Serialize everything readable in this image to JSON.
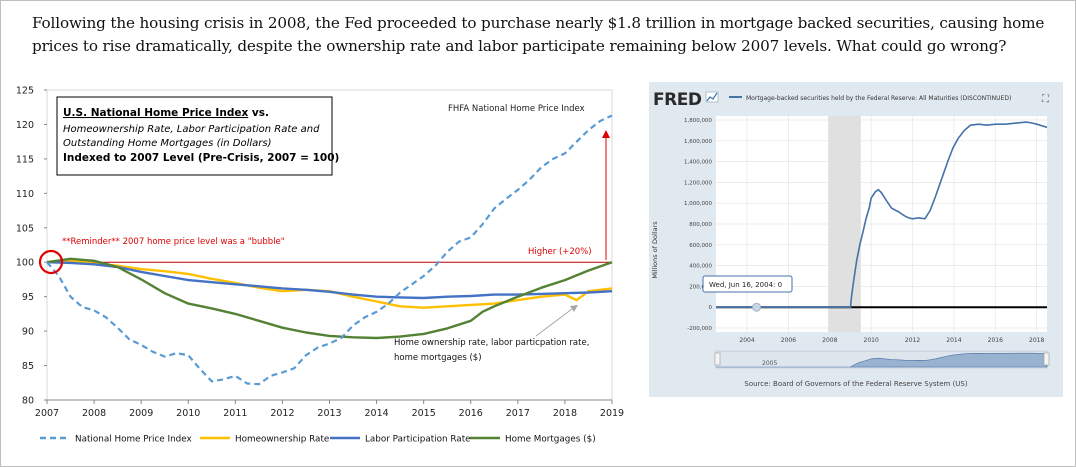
{
  "headline": "Following the housing crisis in 2008, the Fed proceeded to purchase nearly $1.8 trillion in mortgage backed securities, causing home prices to rise dramatically, despite the ownership rate and labor participate remaining below 2007 levels. What could go wrong?",
  "left_chart": {
    "titlebox": {
      "line1_underlined": "U.S. National Home Price Index",
      "line1_suffix": " vs.",
      "line2": "Homeownership Rate, Labor Participation Rate and",
      "line3": "Outstanding Home Mortgages (in Dollars)",
      "line4": "Indexed to 2007 Level (Pre-Crisis, 2007 = 100)"
    },
    "source_label": "FHFA National Home Price Index",
    "reminder": "**Reminder** 2007 home price level was a \"bubble\"",
    "higher_label": "Higher (+20%)",
    "note_line1": "Home ownership rate, labor particpation rate,",
    "note_line2": "home mortgages ($)"
  },
  "chart_data": [
    {
      "type": "line",
      "title": "",
      "xlabel": "",
      "ylabel": "",
      "xlim": [
        2007,
        2019
      ],
      "ylim": [
        80,
        125
      ],
      "x_ticks": [
        "2007",
        "2008",
        "2009",
        "2010",
        "2011",
        "2012",
        "2013",
        "2014",
        "2015",
        "2016",
        "2017",
        "2018",
        "2019"
      ],
      "y_ticks": [
        "80",
        "85",
        "90",
        "95",
        "100",
        "105",
        "110",
        "115",
        "120",
        "125"
      ],
      "grid": false,
      "reference_line": 100,
      "legend_position": "bottom",
      "colors": {
        "National Home Price Index": "#5b9bd5",
        "Homeownership Rate": "#ffc000",
        "Labor Participation Rate": "#4472c4",
        "Home Mortgages ($)": "#548235",
        "reference": "#c00000"
      },
      "series": [
        {
          "name": "National Home Price Index",
          "style": "dashed",
          "points": [
            [
              2007.0,
              100
            ],
            [
              2007.25,
              98
            ],
            [
              2007.5,
              95
            ],
            [
              2007.75,
              93.5
            ],
            [
              2008.0,
              93
            ],
            [
              2008.25,
              92
            ],
            [
              2008.5,
              90.5
            ],
            [
              2008.75,
              88.8
            ],
            [
              2009.0,
              88
            ],
            [
              2009.25,
              87
            ],
            [
              2009.5,
              86.3
            ],
            [
              2009.75,
              86.8
            ],
            [
              2010.0,
              86.5
            ],
            [
              2010.25,
              84.5
            ],
            [
              2010.5,
              82.7
            ],
            [
              2010.75,
              83
            ],
            [
              2011.0,
              83.5
            ],
            [
              2011.25,
              82.4
            ],
            [
              2011.5,
              82.3
            ],
            [
              2011.75,
              83.5
            ],
            [
              2012.0,
              84
            ],
            [
              2012.25,
              84.6
            ],
            [
              2012.5,
              86.5
            ],
            [
              2012.75,
              87.6
            ],
            [
              2013.0,
              88.2
            ],
            [
              2013.25,
              89
            ],
            [
              2013.5,
              90.8
            ],
            [
              2013.75,
              92
            ],
            [
              2014.0,
              92.8
            ],
            [
              2014.25,
              94
            ],
            [
              2014.5,
              95.6
            ],
            [
              2014.75,
              96.8
            ],
            [
              2015.0,
              98
            ],
            [
              2015.25,
              99.5
            ],
            [
              2015.5,
              101.5
            ],
            [
              2015.75,
              103
            ],
            [
              2016.0,
              103.6
            ],
            [
              2016.25,
              105.5
            ],
            [
              2016.5,
              107.8
            ],
            [
              2016.75,
              109.2
            ],
            [
              2017.0,
              110.5
            ],
            [
              2017.25,
              112
            ],
            [
              2017.5,
              113.8
            ],
            [
              2017.75,
              115
            ],
            [
              2018.0,
              115.8
            ],
            [
              2018.25,
              117.5
            ],
            [
              2018.5,
              119.2
            ],
            [
              2018.75,
              120.5
            ],
            [
              2019.0,
              121.3
            ]
          ]
        },
        {
          "name": "Homeownership Rate",
          "style": "solid",
          "points": [
            [
              2007.0,
              100
            ],
            [
              2007.5,
              100.3
            ],
            [
              2008.0,
              99.8
            ],
            [
              2008.5,
              99.5
            ],
            [
              2009.0,
              99
            ],
            [
              2009.5,
              98.7
            ],
            [
              2010.0,
              98.3
            ],
            [
              2010.5,
              97.6
            ],
            [
              2011.0,
              97
            ],
            [
              2011.5,
              96.3
            ],
            [
              2012.0,
              95.8
            ],
            [
              2012.5,
              96
            ],
            [
              2013.0,
              95.8
            ],
            [
              2013.5,
              95
            ],
            [
              2014.0,
              94.3
            ],
            [
              2014.5,
              93.6
            ],
            [
              2015.0,
              93.4
            ],
            [
              2015.5,
              93.6
            ],
            [
              2016.0,
              93.8
            ],
            [
              2016.5,
              94
            ],
            [
              2017.0,
              94.5
            ],
            [
              2017.5,
              95
            ],
            [
              2018.0,
              95.3
            ],
            [
              2018.25,
              94.5
            ],
            [
              2018.5,
              95.8
            ],
            [
              2019.0,
              96.2
            ]
          ]
        },
        {
          "name": "Labor Participation Rate",
          "style": "solid",
          "points": [
            [
              2007.0,
              100
            ],
            [
              2007.5,
              99.9
            ],
            [
              2008.0,
              99.7
            ],
            [
              2008.5,
              99.3
            ],
            [
              2009.0,
              98.6
            ],
            [
              2009.5,
              98
            ],
            [
              2010.0,
              97.4
            ],
            [
              2010.5,
              97.1
            ],
            [
              2011.0,
              96.8
            ],
            [
              2011.5,
              96.5
            ],
            [
              2012.0,
              96.2
            ],
            [
              2012.5,
              96
            ],
            [
              2013.0,
              95.7
            ],
            [
              2013.5,
              95.3
            ],
            [
              2014.0,
              95
            ],
            [
              2014.5,
              94.9
            ],
            [
              2015.0,
              94.8
            ],
            [
              2015.5,
              95
            ],
            [
              2016.0,
              95.1
            ],
            [
              2016.5,
              95.3
            ],
            [
              2017.0,
              95.3
            ],
            [
              2017.5,
              95.4
            ],
            [
              2018.0,
              95.5
            ],
            [
              2018.5,
              95.6
            ],
            [
              2019.0,
              95.8
            ]
          ]
        },
        {
          "name": "Home Mortgages ($)",
          "style": "solid",
          "points": [
            [
              2007.0,
              100
            ],
            [
              2007.5,
              100.5
            ],
            [
              2008.0,
              100.2
            ],
            [
              2008.5,
              99.3
            ],
            [
              2009.0,
              97.5
            ],
            [
              2009.5,
              95.5
            ],
            [
              2010.0,
              94
            ],
            [
              2010.5,
              93.3
            ],
            [
              2011.0,
              92.5
            ],
            [
              2011.5,
              91.5
            ],
            [
              2012.0,
              90.5
            ],
            [
              2012.5,
              89.8
            ],
            [
              2013.0,
              89.3
            ],
            [
              2013.5,
              89.1
            ],
            [
              2014.0,
              89
            ],
            [
              2014.5,
              89.2
            ],
            [
              2015.0,
              89.6
            ],
            [
              2015.5,
              90.4
            ],
            [
              2016.0,
              91.5
            ],
            [
              2016.25,
              92.8
            ],
            [
              2016.5,
              93.6
            ],
            [
              2017.0,
              95
            ],
            [
              2017.5,
              96.3
            ],
            [
              2018.0,
              97.4
            ],
            [
              2018.5,
              98.8
            ],
            [
              2019.0,
              100
            ]
          ]
        }
      ]
    },
    {
      "type": "line",
      "title": "Mortgage-backed securities held by the Federal Reserve: All Maturities (DISCONTINUED)",
      "xlabel": "",
      "ylabel": "Millions of Dollars",
      "xlim": [
        2002.5,
        2018.5
      ],
      "ylim": [
        -200000,
        1800000
      ],
      "x_ticks": [
        "2004",
        "2006",
        "2008",
        "2010",
        "2012",
        "2014",
        "2016",
        "2018"
      ],
      "y_ticks": [
        "-200,000",
        "0",
        "200,000",
        "400,000",
        "600,000",
        "800,000",
        "1,000,000",
        "1,200,000",
        "1,400,000",
        "1,600,000",
        "1,800,000"
      ],
      "grid": true,
      "recession_shading": [
        2007.92,
        2009.5
      ],
      "colors": {
        "series": "#4572a7",
        "recession": "#e0e0e0"
      },
      "series": [
        {
          "name": "Mortgage-backed securities held by the Federal Reserve: All Maturities (DISCONTINUED)",
          "points": [
            [
              2002.5,
              0
            ],
            [
              2009.0,
              0
            ],
            [
              2009.05,
              100000
            ],
            [
              2009.15,
              250000
            ],
            [
              2009.3,
              450000
            ],
            [
              2009.45,
              600000
            ],
            [
              2009.6,
              720000
            ],
            [
              2009.75,
              850000
            ],
            [
              2009.9,
              950000
            ],
            [
              2010.0,
              1050000
            ],
            [
              2010.2,
              1110000
            ],
            [
              2010.35,
              1130000
            ],
            [
              2010.5,
              1100000
            ],
            [
              2010.75,
              1020000
            ],
            [
              2011.0,
              950000
            ],
            [
              2011.3,
              920000
            ],
            [
              2011.6,
              880000
            ],
            [
              2011.8,
              860000
            ],
            [
              2012.0,
              850000
            ],
            [
              2012.3,
              860000
            ],
            [
              2012.6,
              850000
            ],
            [
              2012.85,
              930000
            ],
            [
              2013.1,
              1060000
            ],
            [
              2013.4,
              1230000
            ],
            [
              2013.7,
              1400000
            ],
            [
              2013.95,
              1530000
            ],
            [
              2014.2,
              1620000
            ],
            [
              2014.5,
              1700000
            ],
            [
              2014.8,
              1750000
            ],
            [
              2015.2,
              1760000
            ],
            [
              2015.6,
              1750000
            ],
            [
              2016.0,
              1760000
            ],
            [
              2016.5,
              1760000
            ],
            [
              2017.0,
              1770000
            ],
            [
              2017.5,
              1780000
            ],
            [
              2017.8,
              1770000
            ],
            [
              2018.0,
              1760000
            ],
            [
              2018.5,
              1730000
            ]
          ]
        }
      ]
    }
  ],
  "fred": {
    "logo_text": "FRED",
    "legend_label": "Mortgage-backed securities held by the Federal Reserve: All Maturities (DISCONTINUED)",
    "tooltip": "Wed, Jun 16, 2004: 0",
    "navigator_label": "2005",
    "source": "Source: Board of Governors of the Federal Reserve System (US)",
    "expand_icon": "⛶"
  }
}
